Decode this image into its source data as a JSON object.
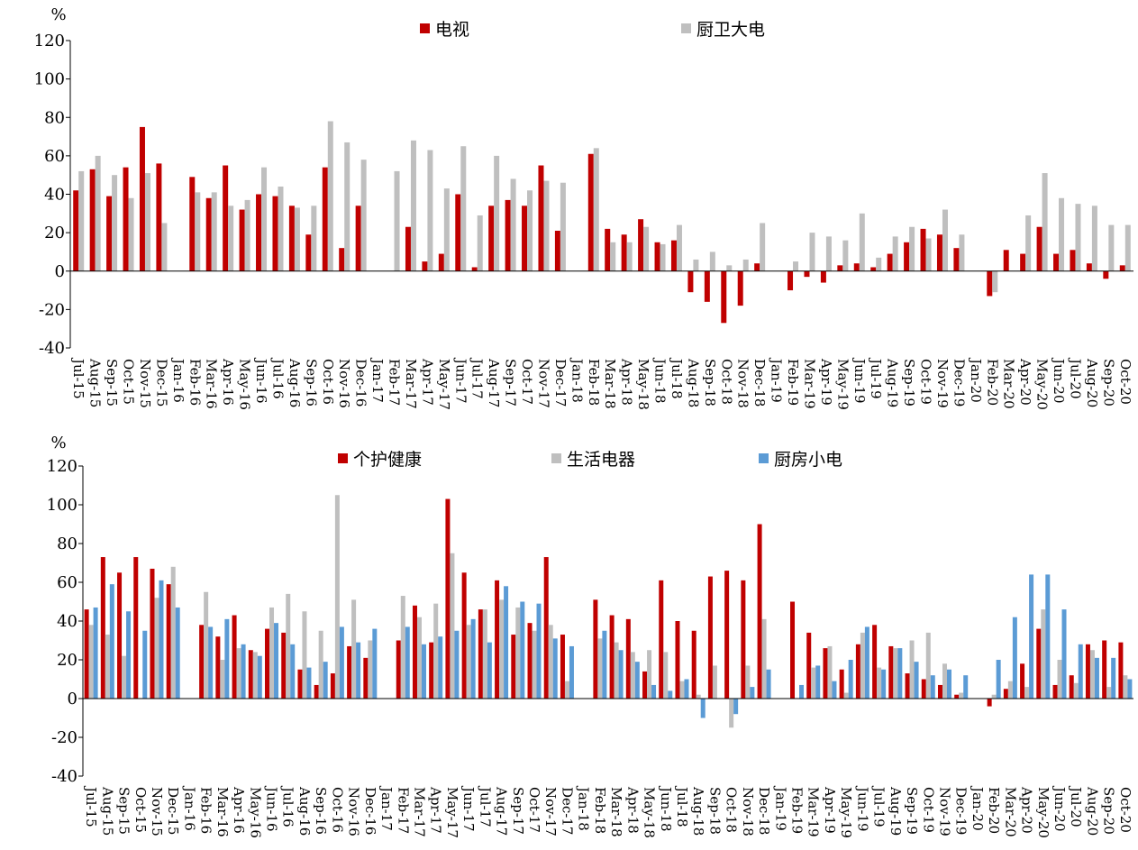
{
  "chart_data": [
    {
      "type": "bar",
      "y_unit": "%",
      "categories": [
        "Jul-15",
        "Aug-15",
        "Sep-15",
        "Oct-15",
        "Nov-15",
        "Dec-15",
        "Jan-16",
        "Feb-16",
        "Mar-16",
        "Apr-16",
        "May-16",
        "Jun-16",
        "Jul-16",
        "Aug-16",
        "Sep-16",
        "Oct-16",
        "Nov-16",
        "Dec-16",
        "Jan-17",
        "Feb-17",
        "Mar-17",
        "Apr-17",
        "May-17",
        "Jun-17",
        "Jul-17",
        "Aug-17",
        "Sep-17",
        "Oct-17",
        "Nov-17",
        "Dec-17",
        "Jan-18",
        "Feb-18",
        "Mar-18",
        "Apr-18",
        "May-18",
        "Jun-18",
        "Jul-18",
        "Aug-18",
        "Sep-18",
        "Oct-18",
        "Nov-18",
        "Dec-18",
        "Jan-19",
        "Feb-19",
        "Mar-19",
        "Apr-19",
        "May-19",
        "Jun-19",
        "Jul-19",
        "Aug-19",
        "Sep-19",
        "Oct-19",
        "Nov-19",
        "Dec-19",
        "Jan-20",
        "Feb-20",
        "Mar-20",
        "Apr-20",
        "May-20",
        "Jun-20",
        "Jul-20",
        "Aug-20",
        "Sep-20",
        "Oct-20"
      ],
      "series": [
        {
          "name": "电视",
          "color": "#c00000",
          "values": [
            42,
            53,
            39,
            54,
            75,
            56,
            null,
            49,
            38,
            55,
            32,
            40,
            39,
            34,
            19,
            54,
            12,
            34,
            null,
            null,
            23,
            5,
            9,
            40,
            2,
            34,
            37,
            34,
            55,
            21,
            null,
            61,
            22,
            19,
            27,
            15,
            16,
            -11,
            -16,
            -27,
            -18,
            4,
            null,
            -10,
            -3,
            -6,
            3,
            4,
            2,
            9,
            15,
            22,
            19,
            12,
            null,
            -13,
            11,
            9,
            23,
            9,
            11,
            4,
            -4,
            3
          ]
        },
        {
          "name": "厨卫大电",
          "color": "#bfbfbf",
          "values": [
            52,
            60,
            50,
            38,
            51,
            25,
            null,
            41,
            41,
            34,
            37,
            54,
            44,
            33,
            34,
            78,
            67,
            58,
            null,
            52,
            68,
            63,
            43,
            65,
            29,
            60,
            48,
            42,
            47,
            46,
            null,
            64,
            15,
            15,
            23,
            14,
            24,
            6,
            10,
            3,
            6,
            25,
            null,
            5,
            20,
            18,
            16,
            30,
            7,
            18,
            23,
            17,
            32,
            19,
            null,
            -11,
            null,
            29,
            51,
            38,
            35,
            34,
            24,
            24
          ]
        }
      ],
      "ylim": [
        -40,
        120
      ],
      "yticks": [
        -40,
        -20,
        0,
        20,
        40,
        60,
        80,
        100,
        120
      ]
    },
    {
      "type": "bar",
      "y_unit": "%",
      "categories": [
        "Jul-15",
        "Aug-15",
        "Sep-15",
        "Oct-15",
        "Nov-15",
        "Dec-15",
        "Jan-16",
        "Feb-16",
        "Mar-16",
        "Apr-16",
        "May-16",
        "Jun-16",
        "Jul-16",
        "Aug-16",
        "Sep-16",
        "Oct-16",
        "Nov-16",
        "Dec-16",
        "Jan-17",
        "Feb-17",
        "Mar-17",
        "Apr-17",
        "May-17",
        "Jun-17",
        "Jul-17",
        "Aug-17",
        "Sep-17",
        "Oct-17",
        "Nov-17",
        "Dec-17",
        "Jan-18",
        "Feb-18",
        "Mar-18",
        "Apr-18",
        "May-18",
        "Jun-18",
        "Jul-18",
        "Aug-18",
        "Sep-18",
        "Oct-18",
        "Nov-18",
        "Dec-18",
        "Jan-19",
        "Feb-19",
        "Mar-19",
        "Apr-19",
        "May-19",
        "Jun-19",
        "Jul-19",
        "Aug-19",
        "Sep-19",
        "Oct-19",
        "Nov-19",
        "Dec-19",
        "Jan-20",
        "Feb-20",
        "Mar-20",
        "Apr-20",
        "May-20",
        "Jun-20",
        "Jul-20",
        "Aug-20",
        "Sep-20",
        "Oct-20"
      ],
      "series": [
        {
          "name": "个护健康",
          "color": "#c00000",
          "values": [
            46,
            73,
            65,
            73,
            67,
            59,
            null,
            38,
            32,
            43,
            25,
            36,
            34,
            15,
            7,
            13,
            27,
            21,
            null,
            30,
            48,
            29,
            103,
            65,
            46,
            61,
            33,
            39,
            73,
            33,
            null,
            51,
            43,
            41,
            14,
            61,
            40,
            35,
            63,
            66,
            61,
            90,
            null,
            50,
            34,
            26,
            15,
            28,
            38,
            27,
            13,
            10,
            7,
            2,
            null,
            -4,
            5,
            18,
            36,
            7,
            12,
            28,
            30,
            29
          ]
        },
        {
          "name": "生活电器",
          "color": "#bfbfbf",
          "values": [
            38,
            33,
            22,
            null,
            52,
            68,
            null,
            55,
            20,
            26,
            24,
            47,
            54,
            45,
            35,
            105,
            51,
            30,
            null,
            53,
            42,
            49,
            75,
            38,
            46,
            51,
            47,
            35,
            38,
            9,
            null,
            31,
            29,
            24,
            25,
            24,
            9,
            2,
            17,
            -15,
            17,
            41,
            null,
            null,
            16,
            27,
            3,
            34,
            16,
            26,
            30,
            34,
            18,
            3,
            null,
            2,
            9,
            6,
            46,
            20,
            8,
            25,
            6,
            12
          ]
        },
        {
          "name": "厨房小电",
          "color": "#5b9bd5",
          "values": [
            47,
            59,
            45,
            35,
            61,
            47,
            null,
            37,
            41,
            28,
            22,
            39,
            28,
            16,
            19,
            37,
            29,
            36,
            null,
            37,
            28,
            32,
            35,
            41,
            29,
            58,
            50,
            49,
            31,
            27,
            null,
            35,
            25,
            19,
            7,
            4,
            10,
            -10,
            null,
            -8,
            6,
            15,
            null,
            7,
            17,
            9,
            20,
            37,
            15,
            26,
            19,
            12,
            15,
            12,
            null,
            20,
            42,
            64,
            64,
            46,
            28,
            21,
            21,
            10
          ]
        }
      ],
      "ylim": [
        -40,
        120
      ],
      "yticks": [
        -40,
        -20,
        0,
        20,
        40,
        60,
        80,
        100,
        120
      ]
    }
  ]
}
